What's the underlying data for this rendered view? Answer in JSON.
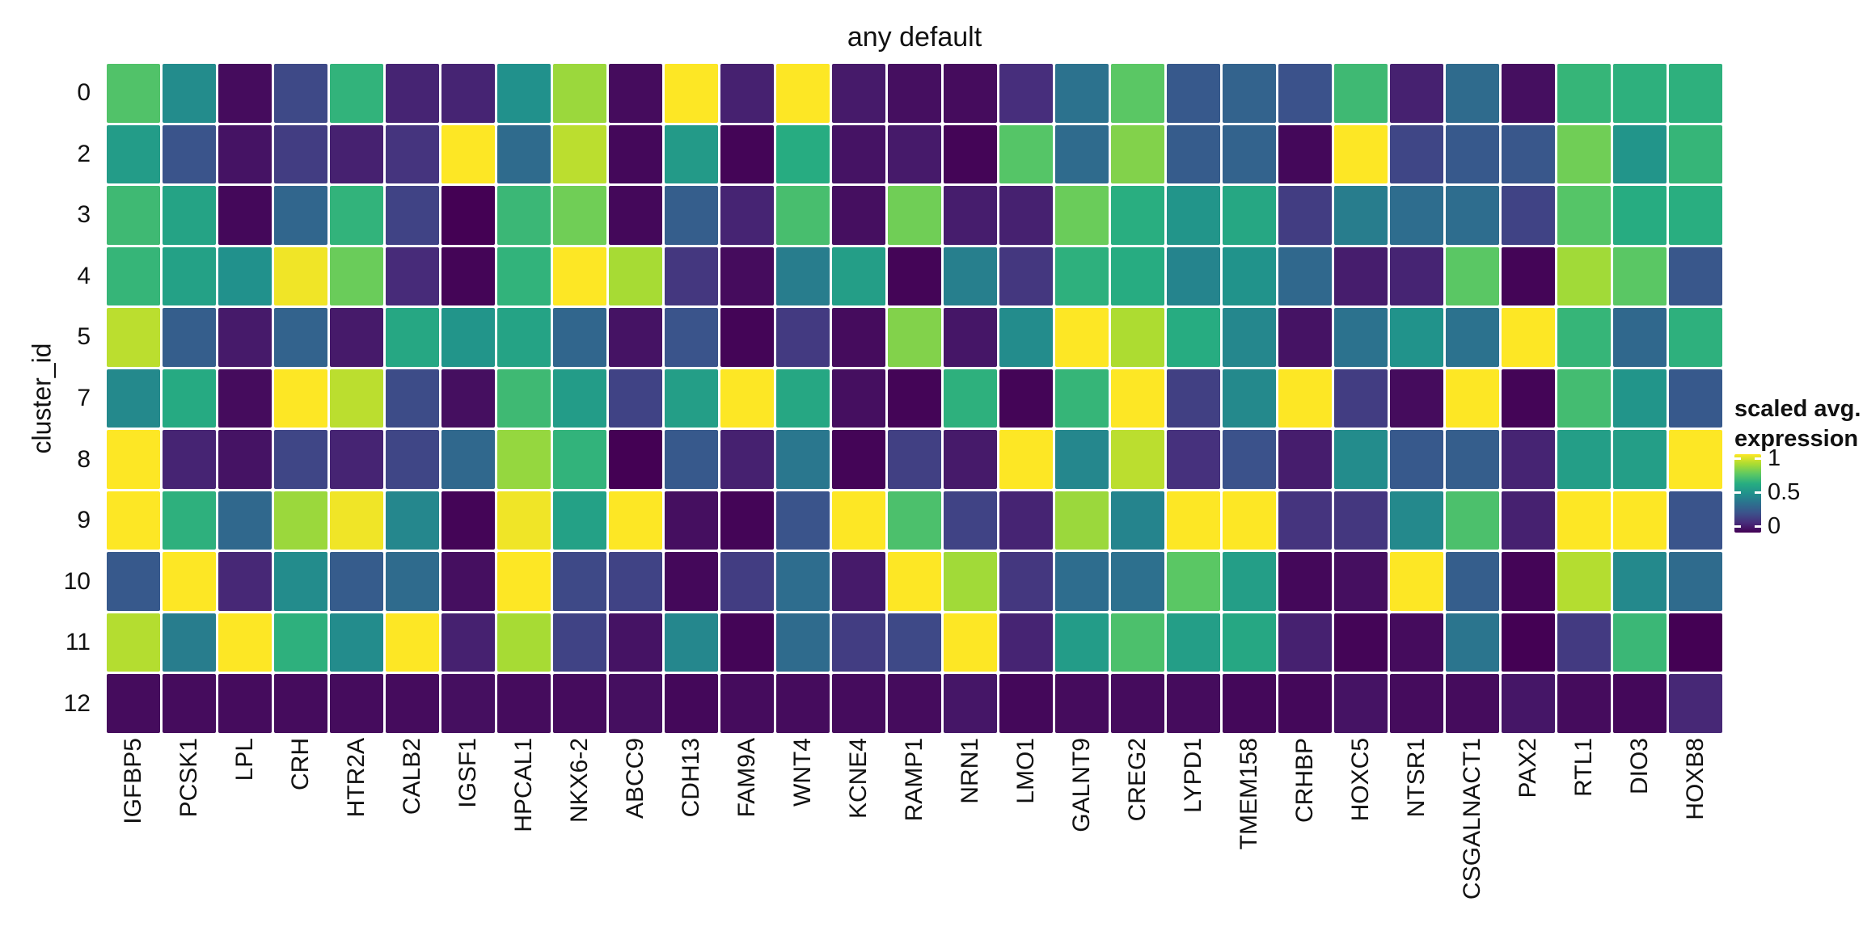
{
  "title": "any default",
  "y_axis": {
    "label": "cluster_id"
  },
  "legend": {
    "title_line1": "scaled avg.",
    "title_line2": "expression",
    "ticks": [
      {
        "label": "1",
        "value": 1.0
      },
      {
        "label": "0.5",
        "value": 0.5
      },
      {
        "label": "0",
        "value": 0.0
      }
    ]
  },
  "colors": {
    "background": "#ffffff",
    "text": "#111111",
    "cell_gap": "#ffffff",
    "viridis_stops": [
      "#440154",
      "#472d7b",
      "#3b528b",
      "#2c718e",
      "#21918c",
      "#27ad81",
      "#5ec962",
      "#aadc32",
      "#fde725"
    ]
  },
  "chart_data": {
    "type": "heatmap",
    "title": "any default",
    "ylabel": "cluster_id",
    "legend_title": "scaled avg. expression",
    "colorscale": "viridis",
    "zlim": [
      0,
      1
    ],
    "rows": [
      "0",
      "2",
      "3",
      "4",
      "5",
      "7",
      "8",
      "9",
      "10",
      "11",
      "12"
    ],
    "columns": [
      "IGFBP5",
      "PCSK1",
      "LPL",
      "CRH",
      "HTR2A",
      "CALB2",
      "IGSF1",
      "HPCAL1",
      "NKX6-2",
      "ABCC9",
      "CDH13",
      "FAM9A",
      "WNT4",
      "KCNE4",
      "RAMP1",
      "NRN1",
      "LMO1",
      "GALNT9",
      "CREG2",
      "LYPD1",
      "TMEM158",
      "CRHBP",
      "HOXC5",
      "NTSR1",
      "CSGALNACT1",
      "PAX2",
      "RTL1",
      "DIO3",
      "HOXB8"
    ],
    "values": [
      [
        0.72,
        0.48,
        0.03,
        0.22,
        0.65,
        0.1,
        0.1,
        0.5,
        0.85,
        0.03,
        1.0,
        0.09,
        1.0,
        0.07,
        0.04,
        0.03,
        0.13,
        0.38,
        0.74,
        0.28,
        0.32,
        0.25,
        0.68,
        0.09,
        0.35,
        0.04,
        0.66,
        0.64,
        0.64
      ],
      [
        0.55,
        0.26,
        0.05,
        0.18,
        0.09,
        0.15,
        1.0,
        0.35,
        0.9,
        0.02,
        0.54,
        0.01,
        0.62,
        0.05,
        0.07,
        0.01,
        0.73,
        0.35,
        0.81,
        0.29,
        0.32,
        0.02,
        1.0,
        0.21,
        0.28,
        0.27,
        0.78,
        0.52,
        0.66
      ],
      [
        0.68,
        0.58,
        0.02,
        0.33,
        0.65,
        0.2,
        0.0,
        0.67,
        0.78,
        0.02,
        0.3,
        0.1,
        0.7,
        0.04,
        0.78,
        0.08,
        0.09,
        0.77,
        0.63,
        0.52,
        0.6,
        0.18,
        0.42,
        0.36,
        0.36,
        0.2,
        0.73,
        0.62,
        0.63
      ],
      [
        0.66,
        0.57,
        0.5,
        0.98,
        0.77,
        0.12,
        0.01,
        0.65,
        1.0,
        0.87,
        0.16,
        0.03,
        0.42,
        0.56,
        0.01,
        0.43,
        0.16,
        0.64,
        0.62,
        0.45,
        0.51,
        0.34,
        0.08,
        0.1,
        0.74,
        0.01,
        0.86,
        0.74,
        0.27
      ],
      [
        0.9,
        0.3,
        0.07,
        0.32,
        0.07,
        0.6,
        0.52,
        0.58,
        0.33,
        0.05,
        0.26,
        0.01,
        0.17,
        0.03,
        0.81,
        0.06,
        0.48,
        1.0,
        0.88,
        0.62,
        0.46,
        0.05,
        0.38,
        0.51,
        0.38,
        1.0,
        0.66,
        0.34,
        0.64
      ],
      [
        0.47,
        0.61,
        0.03,
        1.0,
        0.9,
        0.23,
        0.04,
        0.68,
        0.55,
        0.2,
        0.56,
        1.0,
        0.6,
        0.04,
        0.01,
        0.64,
        0.01,
        0.66,
        1.0,
        0.19,
        0.47,
        1.0,
        0.18,
        0.03,
        1.0,
        0.01,
        0.69,
        0.52,
        0.28
      ],
      [
        1.0,
        0.1,
        0.05,
        0.21,
        0.1,
        0.21,
        0.34,
        0.84,
        0.65,
        0.0,
        0.28,
        0.09,
        0.4,
        0.01,
        0.19,
        0.07,
        1.0,
        0.46,
        0.9,
        0.14,
        0.25,
        0.08,
        0.48,
        0.28,
        0.3,
        0.1,
        0.56,
        0.56,
        1.0
      ],
      [
        1.0,
        0.64,
        0.34,
        0.85,
        0.98,
        0.46,
        0.01,
        0.98,
        0.57,
        1.0,
        0.04,
        0.01,
        0.26,
        1.0,
        0.71,
        0.2,
        0.1,
        0.85,
        0.45,
        1.0,
        1.0,
        0.15,
        0.16,
        0.47,
        0.71,
        0.09,
        1.0,
        1.0,
        0.26
      ],
      [
        0.28,
        1.0,
        0.11,
        0.48,
        0.29,
        0.35,
        0.04,
        1.0,
        0.22,
        0.2,
        0.02,
        0.18,
        0.36,
        0.07,
        1.0,
        0.86,
        0.16,
        0.36,
        0.37,
        0.74,
        0.56,
        0.02,
        0.04,
        1.0,
        0.3,
        0.01,
        0.89,
        0.47,
        0.35
      ],
      [
        0.89,
        0.42,
        1.0,
        0.64,
        0.48,
        1.0,
        0.09,
        0.87,
        0.2,
        0.05,
        0.46,
        0.01,
        0.35,
        0.18,
        0.22,
        1.0,
        0.1,
        0.55,
        0.71,
        0.56,
        0.6,
        0.09,
        0.01,
        0.03,
        0.39,
        0.0,
        0.17,
        0.67,
        0.0
      ],
      [
        0.03,
        0.03,
        0.03,
        0.03,
        0.03,
        0.03,
        0.04,
        0.03,
        0.03,
        0.04,
        0.02,
        0.03,
        0.03,
        0.03,
        0.03,
        0.06,
        0.02,
        0.03,
        0.03,
        0.03,
        0.02,
        0.02,
        0.05,
        0.03,
        0.03,
        0.06,
        0.03,
        0.02,
        0.11
      ]
    ]
  }
}
